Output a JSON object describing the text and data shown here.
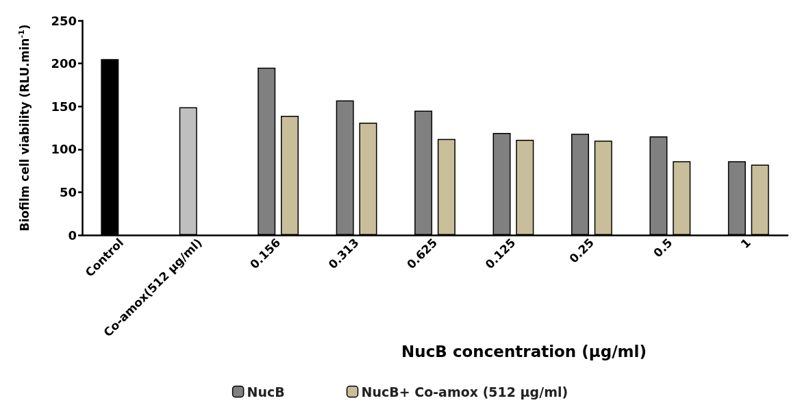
{
  "chart_data": {
    "type": "bar",
    "xlabel": "NucB concentration (µg/ml)",
    "ylabel": "Biofilm cell viability (RLU.min$^{-1}$)",
    "categories": [
      "Control",
      "Co-amox(512 µg/ml)",
      "0.156",
      "0.313",
      "0.625",
      "0.125",
      "0.25",
      "0.5",
      "1"
    ],
    "series": [
      {
        "colors": [
          "#000000",
          "#bfbfbf",
          null,
          null,
          null,
          null,
          null,
          null,
          null
        ],
        "values": [
          205,
          149,
          null,
          null,
          null,
          null,
          null,
          null,
          null
        ]
      },
      {
        "name": "NucB",
        "color": "#808080",
        "values": [
          null,
          null,
          195,
          157,
          145,
          119,
          118,
          115,
          86
        ]
      },
      {
        "name": "NucB+ Co-amox (512 µg/ml)",
        "color": "#c8bf9a",
        "values": [
          null,
          null,
          139,
          131,
          112,
          111,
          110,
          86,
          82
        ]
      }
    ],
    "ylim": [
      0,
      250
    ],
    "yticks": [
      0,
      50,
      100,
      150,
      200,
      250
    ],
    "grid": false,
    "legend": "bottom"
  }
}
